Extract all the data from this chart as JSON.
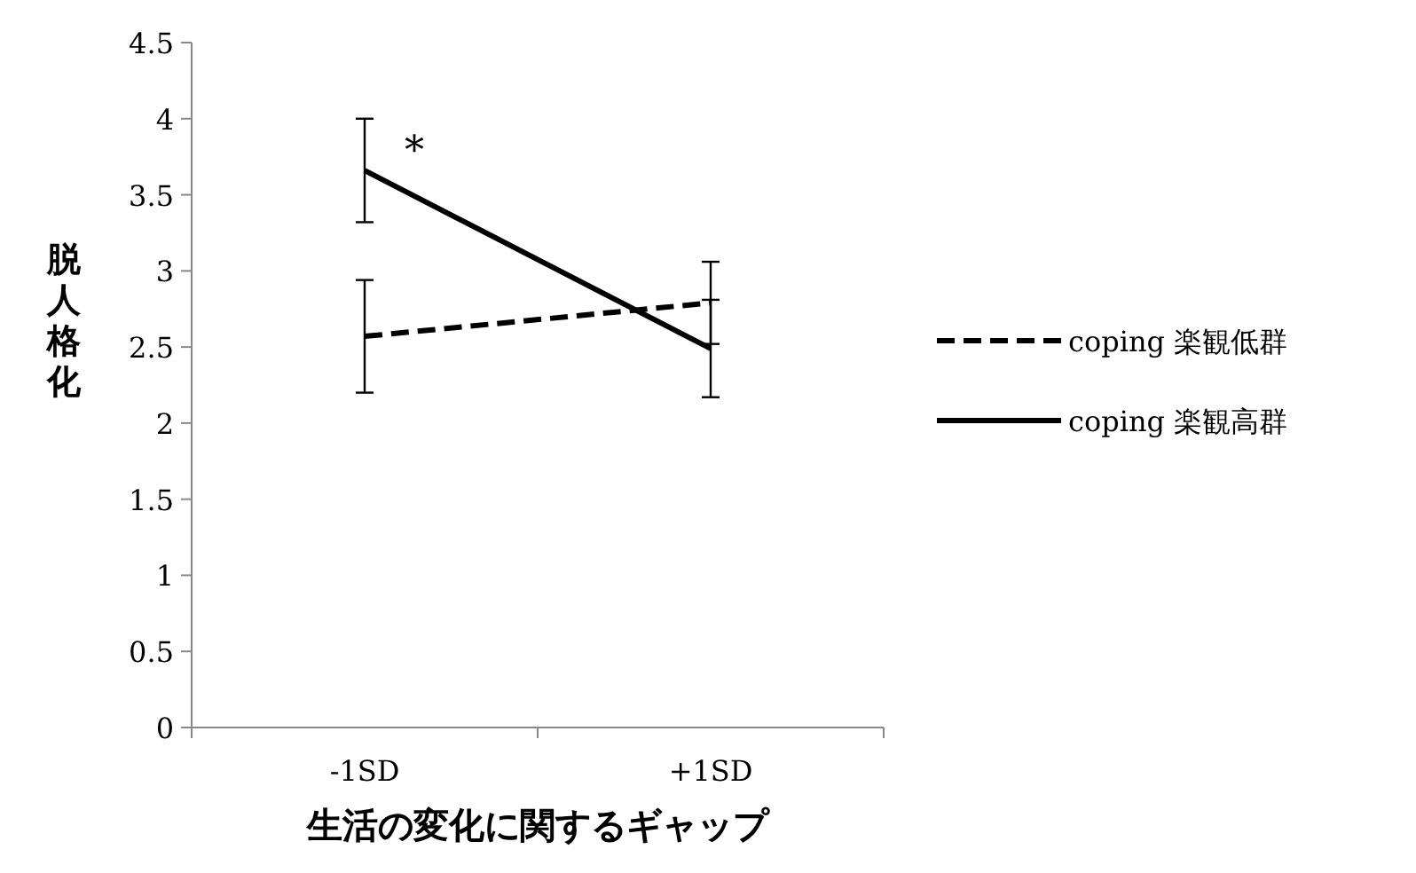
{
  "chart_data": {
    "type": "line",
    "xlabel": "生活の変化に関するギャップ",
    "ylabel": "脱人格化",
    "categories": [
      "-1SD",
      "+1SD"
    ],
    "ylim": [
      0,
      4.5
    ],
    "yticks": [
      0,
      0.5,
      1,
      1.5,
      2,
      2.5,
      3,
      3.5,
      4,
      4.5
    ],
    "series": [
      {
        "name": "coping 楽観低群",
        "color": "#000000",
        "line_style": "dashed",
        "values": [
          2.57,
          2.79
        ],
        "errors": [
          0.37,
          0.27
        ]
      },
      {
        "name": "coping 楽観高群",
        "color": "#000000",
        "line_style": "solid",
        "values": [
          3.66,
          2.49
        ],
        "errors": [
          0.34,
          0.32
        ]
      }
    ],
    "annotations": [
      {
        "text": "*",
        "x": "-1SD",
        "y": 3.66
      }
    ],
    "legend": "right",
    "marker": "none",
    "grid": false
  }
}
